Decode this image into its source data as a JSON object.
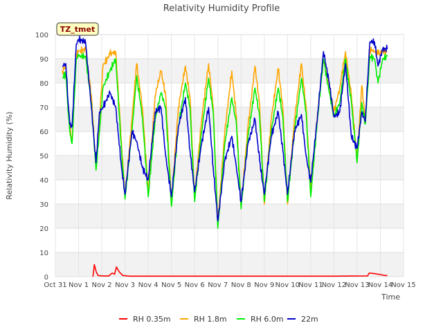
{
  "chart_data": {
    "type": "line",
    "title": "Relativity Humidity Profile",
    "xlabel": "Time",
    "ylabel": "Relativity Humidity (%)",
    "ylim": [
      0,
      100
    ],
    "xlim": [
      0,
      15
    ],
    "yticks": [
      0,
      10,
      20,
      30,
      40,
      50,
      60,
      70,
      80,
      90,
      100
    ],
    "xticks": [
      0,
      1,
      2,
      3,
      4,
      5,
      6,
      7,
      8,
      9,
      10,
      11,
      12,
      13,
      14,
      15
    ],
    "xticklabels": [
      "Oct 31",
      "Nov 1",
      "Nov 2",
      "Nov 3",
      "Nov 4",
      "Nov 5",
      "Nov 6",
      "Nov 7",
      "Nov 8",
      "Nov 9",
      "Nov 10",
      "Nov 11",
      "Nov 12",
      "Nov 13",
      "Nov 14",
      "Nov 15"
    ],
    "annotation": "TZ_tmet",
    "legend_position": "bottom-center",
    "series": [
      {
        "name": "RH 0.35m",
        "color": "#ff0000",
        "x": [
          0,
          1.3,
          1.62,
          1.68,
          1.76,
          1.84,
          2.0,
          2.3,
          2.45,
          2.55,
          2.63,
          2.75,
          2.9,
          3.2,
          4,
          6,
          8,
          10,
          12,
          13.45,
          13.52,
          13.8,
          14.2,
          14.3
        ],
        "y": [
          null,
          null,
          0,
          5,
          2,
          0.5,
          0.3,
          0.3,
          1.5,
          1,
          4,
          2,
          0.5,
          0.2,
          0.2,
          0.2,
          0.2,
          0.2,
          0.2,
          0.3,
          1.5,
          1.2,
          0.5,
          0.5
        ]
      },
      {
        "name": "RH 1.8m",
        "color": "#ffa500",
        "x": [
          0.3,
          0.45,
          0.55,
          0.62,
          0.72,
          0.9,
          1.0,
          1.3,
          1.55,
          1.75,
          1.9,
          2.05,
          2.35,
          2.6,
          2.85,
          3.0,
          3.3,
          3.5,
          3.75,
          4.0,
          4.3,
          4.55,
          4.75,
          5.0,
          5.3,
          5.6,
          5.8,
          6.0,
          6.3,
          6.6,
          6.8,
          7.0,
          7.3,
          7.6,
          7.8,
          8.0,
          8.3,
          8.6,
          8.8,
          9.0,
          9.3,
          9.6,
          9.8,
          10.0,
          10.3,
          10.6,
          10.8,
          11.0,
          11.3,
          11.55,
          11.8,
          12.0,
          12.25,
          12.5,
          12.75,
          13.0,
          13.2,
          13.35,
          13.55,
          13.75,
          13.9,
          14.1,
          14.3
        ],
        "y": [
          85,
          87,
          70,
          62,
          56,
          92,
          93,
          94,
          75,
          45,
          65,
          87,
          92,
          93,
          55,
          33,
          65,
          88,
          70,
          35,
          75,
          85,
          75,
          31,
          70,
          87,
          74,
          33,
          65,
          88,
          70,
          22,
          60,
          85,
          66,
          29,
          62,
          87,
          71,
          30,
          65,
          86,
          70,
          30,
          65,
          88,
          70,
          36,
          68,
          90,
          78,
          68,
          78,
          93,
          75,
          48,
          79,
          65,
          94,
          93,
          92,
          93,
          93
        ]
      },
      {
        "name": "RH 6.0m",
        "color": "#00ee00",
        "x": [
          0.3,
          0.45,
          0.55,
          0.62,
          0.72,
          0.9,
          1.0,
          1.3,
          1.55,
          1.75,
          1.9,
          2.05,
          2.35,
          2.6,
          2.85,
          3.0,
          3.3,
          3.5,
          3.75,
          4.0,
          4.3,
          4.55,
          4.75,
          5.0,
          5.3,
          5.6,
          5.8,
          6.0,
          6.3,
          6.6,
          6.8,
          7.0,
          7.3,
          7.6,
          7.8,
          8.0,
          8.3,
          8.6,
          8.8,
          9.0,
          9.3,
          9.6,
          9.8,
          10.0,
          10.3,
          10.6,
          10.8,
          11.0,
          11.3,
          11.55,
          11.8,
          12.0,
          12.25,
          12.5,
          12.75,
          13.0,
          13.2,
          13.35,
          13.55,
          13.75,
          13.9,
          14.1,
          14.3
        ],
        "y": [
          82,
          84,
          68,
          60,
          55,
          90,
          91,
          91,
          72,
          44,
          60,
          78,
          85,
          90,
          52,
          32,
          60,
          83,
          66,
          33,
          65,
          76,
          70,
          29,
          62,
          80,
          70,
          31,
          60,
          82,
          68,
          20,
          55,
          74,
          63,
          28,
          58,
          78,
          66,
          31,
          60,
          78,
          66,
          31,
          60,
          82,
          68,
          33,
          66,
          90,
          76,
          66,
          72,
          90,
          72,
          47,
          72,
          63,
          91,
          90,
          80,
          90,
          91
        ]
      },
      {
        "name": "22m",
        "color": "#0000cc",
        "x": [
          0.3,
          0.45,
          0.55,
          0.62,
          0.72,
          0.9,
          1.0,
          1.3,
          1.55,
          1.75,
          1.9,
          2.05,
          2.35,
          2.6,
          2.85,
          3.0,
          3.3,
          3.5,
          3.75,
          4.0,
          4.3,
          4.55,
          4.75,
          5.0,
          5.3,
          5.6,
          5.8,
          6.0,
          6.3,
          6.6,
          6.8,
          7.0,
          7.3,
          7.6,
          7.8,
          8.0,
          8.3,
          8.6,
          8.8,
          9.0,
          9.3,
          9.6,
          9.8,
          10.0,
          10.3,
          10.6,
          10.8,
          11.0,
          11.3,
          11.55,
          11.8,
          12.0,
          12.25,
          12.5,
          12.75,
          13.0,
          13.2,
          13.35,
          13.55,
          13.75,
          13.9,
          14.1,
          14.3
        ],
        "y": [
          87,
          88,
          72,
          63,
          62,
          96,
          98,
          97,
          70,
          47,
          68,
          70,
          76,
          70,
          45,
          34,
          60,
          56,
          45,
          40,
          68,
          70,
          50,
          33,
          62,
          74,
          52,
          35,
          55,
          70,
          45,
          23,
          48,
          58,
          45,
          31,
          55,
          65,
          48,
          34,
          58,
          68,
          52,
          34,
          60,
          67,
          50,
          39,
          67,
          93,
          80,
          66,
          68,
          88,
          58,
          53,
          68,
          64,
          97,
          97,
          87,
          94,
          94
        ]
      }
    ]
  }
}
